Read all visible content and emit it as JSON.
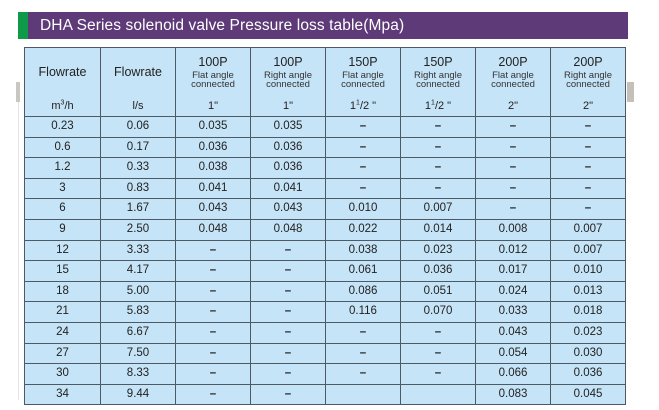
{
  "title": "DHA Series solenoid valve Pressure loss table(Mpa)",
  "colors": {
    "title_bg": "#5e3a78",
    "accent_green": "#0f9a4a",
    "cell_bg": "#c6e4f7"
  },
  "header": {
    "col1": {
      "label": "Flowrate",
      "unit_base": "m",
      "unit_sup": "3",
      "unit_rest": "/h"
    },
    "col2": {
      "label": "Flowrate",
      "unit": "l/s"
    },
    "valves": [
      {
        "model": "100P",
        "line1": "Flat angle",
        "line2": "connected",
        "size_main": "1\"",
        "size_sup": "",
        "size_rest": ""
      },
      {
        "model": "100P",
        "line1": "Right angle",
        "line2": "connected",
        "size_main": "1\"",
        "size_sup": "",
        "size_rest": ""
      },
      {
        "model": "150P",
        "line1": "Flat angle",
        "line2": "connected",
        "size_main": "1",
        "size_sup": "1",
        "size_rest": "/2 \""
      },
      {
        "model": "150P",
        "line1": "Right angle",
        "line2": "connected",
        "size_main": "1",
        "size_sup": "1",
        "size_rest": "/2 \""
      },
      {
        "model": "200P",
        "line1": "Flat angle",
        "line2": "connected",
        "size_main": "2\"",
        "size_sup": "",
        "size_rest": ""
      },
      {
        "model": "200P",
        "line1": "Right angle",
        "line2": "connected",
        "size_main": "2\"",
        "size_sup": "",
        "size_rest": ""
      }
    ]
  },
  "rows": [
    {
      "m3h": "0.23",
      "ls": "0.06",
      "v": [
        "0.035",
        "0.035",
        "–",
        "–",
        "–",
        "–"
      ]
    },
    {
      "m3h": "0.6",
      "ls": "0.17",
      "v": [
        "0.036",
        "0.036",
        "–",
        "–",
        "–",
        "–"
      ]
    },
    {
      "m3h": "1.2",
      "ls": "0.33",
      "v": [
        "0.038",
        "0.036",
        "–",
        "–",
        "–",
        "–"
      ]
    },
    {
      "m3h": "3",
      "ls": "0.83",
      "v": [
        "0.041",
        "0.041",
        "–",
        "–",
        "–",
        "–"
      ]
    },
    {
      "m3h": "6",
      "ls": "1.67",
      "v": [
        "0.043",
        "0.043",
        "0.010",
        "0.007",
        "–",
        "–"
      ]
    },
    {
      "m3h": "9",
      "ls": "2.50",
      "v": [
        "0.048",
        "0.048",
        "0.022",
        "0.014",
        "0.008",
        "0.007"
      ]
    },
    {
      "m3h": "12",
      "ls": "3.33",
      "v": [
        "–",
        "–",
        "0.038",
        "0.023",
        "0.012",
        "0.007"
      ]
    },
    {
      "m3h": "15",
      "ls": "4.17",
      "v": [
        "–",
        "–",
        "0.061",
        "0.036",
        "0.017",
        "0.010"
      ]
    },
    {
      "m3h": "18",
      "ls": "5.00",
      "v": [
        "–",
        "–",
        "0.086",
        "0.051",
        "0.024",
        "0.013"
      ]
    },
    {
      "m3h": "21",
      "ls": "5.83",
      "v": [
        "–",
        "–",
        "0.116",
        "0.070",
        "0.033",
        "0.018"
      ]
    },
    {
      "m3h": "24",
      "ls": "6.67",
      "v": [
        "–",
        "–",
        "–",
        "–",
        "0.043",
        "0.023"
      ]
    },
    {
      "m3h": "27",
      "ls": "7.50",
      "v": [
        "–",
        "–",
        "–",
        "–",
        "0.054",
        "0.030"
      ]
    },
    {
      "m3h": "30",
      "ls": "8.33",
      "v": [
        "–",
        "–",
        "–",
        "–",
        "0.066",
        "0.036"
      ]
    },
    {
      "m3h": "34",
      "ls": "9.44",
      "v": [
        "–",
        "–",
        "",
        "",
        "0.083",
        "0.045"
      ]
    }
  ]
}
